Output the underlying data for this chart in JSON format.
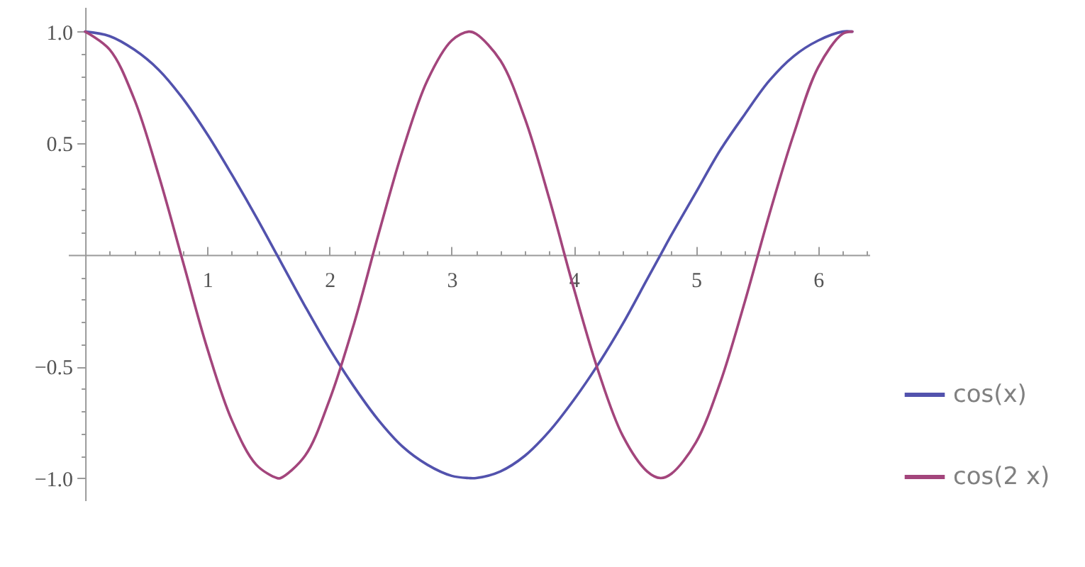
{
  "chart_data": {
    "type": "line",
    "x": [
      0,
      0.2,
      0.4,
      0.6,
      0.8,
      1.0,
      1.2,
      1.4,
      1.57,
      1.6,
      1.8,
      2.0,
      2.2,
      2.4,
      2.6,
      2.8,
      3.0,
      3.14,
      3.2,
      3.4,
      3.6,
      3.8,
      4.0,
      4.2,
      4.4,
      4.6,
      4.71,
      4.8,
      5.0,
      5.2,
      5.4,
      5.6,
      5.8,
      6.0,
      6.2,
      6.28
    ],
    "series": [
      {
        "name": "cos(x)",
        "color": "#5252ad",
        "values": [
          1,
          0.98,
          0.92,
          0.83,
          0.7,
          0.54,
          0.36,
          0.17,
          0,
          -0.03,
          -0.23,
          -0.42,
          -0.59,
          -0.74,
          -0.86,
          -0.94,
          -0.99,
          -1,
          -1,
          -0.97,
          -0.9,
          -0.79,
          -0.65,
          -0.49,
          -0.31,
          -0.11,
          0,
          0.09,
          0.28,
          0.47,
          0.63,
          0.78,
          0.89,
          0.96,
          1,
          1
        ]
      },
      {
        "name": "cos(2 x)",
        "color": "#a3457c",
        "values": [
          1,
          0.92,
          0.7,
          0.36,
          -0.03,
          -0.42,
          -0.74,
          -0.94,
          -1,
          -1,
          -0.9,
          -0.65,
          -0.31,
          0.09,
          0.47,
          0.78,
          0.96,
          1,
          0.99,
          0.87,
          0.61,
          0.25,
          -0.15,
          -0.52,
          -0.81,
          -0.97,
          -1,
          -0.98,
          -0.84,
          -0.57,
          -0.21,
          0.18,
          0.54,
          0.84,
          0.99,
          1
        ]
      }
    ],
    "xlim": [
      -0.14,
      6.42
    ],
    "xticks": [
      {
        "value": 0.2,
        "label": null
      },
      {
        "value": 0.4,
        "label": null
      },
      {
        "value": 0.6,
        "label": null
      },
      {
        "value": 0.8,
        "label": null
      },
      1,
      {
        "value": 1.2,
        "label": null
      },
      {
        "value": 1.4,
        "label": null
      },
      {
        "value": 1.6,
        "label": null
      },
      {
        "value": 1.8,
        "label": null
      },
      2,
      {
        "value": 2.2,
        "label": null
      },
      {
        "value": 2.4,
        "label": null
      },
      {
        "value": 2.6,
        "label": null
      },
      {
        "value": 2.8,
        "label": null
      },
      3,
      {
        "value": 3.2,
        "label": null
      },
      {
        "value": 3.4,
        "label": null
      },
      {
        "value": 3.6,
        "label": null
      },
      {
        "value": 3.8,
        "label": null
      },
      4,
      {
        "value": 4.2,
        "label": null
      },
      {
        "value": 4.4,
        "label": null
      },
      {
        "value": 4.6,
        "label": null
      },
      {
        "value": 4.8,
        "label": null
      },
      5,
      {
        "value": 5.2,
        "label": null
      },
      {
        "value": 5.4,
        "label": null
      },
      {
        "value": 5.6,
        "label": null
      },
      {
        "value": 5.8,
        "label": null
      },
      6,
      {
        "value": 6.2,
        "label": null
      },
      {
        "value": 6.4,
        "label": null
      }
    ],
    "ylim": [
      -1.1,
      1.11
    ],
    "yticks": [
      {
        "value": -1,
        "label": "−1.0"
      },
      {
        "value": -0.9,
        "label": null
      },
      {
        "value": -0.8,
        "label": null
      },
      {
        "value": -0.7,
        "label": null
      },
      {
        "value": -0.6,
        "label": null
      },
      {
        "value": -0.5,
        "label": "−0.5"
      },
      {
        "value": -0.4,
        "label": null
      },
      {
        "value": -0.3,
        "label": null
      },
      {
        "value": -0.2,
        "label": null
      },
      {
        "value": -0.1,
        "label": null
      },
      {
        "value": 0.1,
        "label": null
      },
      {
        "value": 0.2,
        "label": null
      },
      {
        "value": 0.3,
        "label": null
      },
      {
        "value": 0.4,
        "label": null
      },
      {
        "value": 0.5,
        "label": "0.5"
      },
      {
        "value": 0.6,
        "label": null
      },
      {
        "value": 0.7,
        "label": null
      },
      {
        "value": 0.8,
        "label": null
      },
      {
        "value": 0.9,
        "label": null
      },
      {
        "value": 1,
        "label": "1.0"
      }
    ],
    "legend": "right",
    "line_style": "solid"
  }
}
